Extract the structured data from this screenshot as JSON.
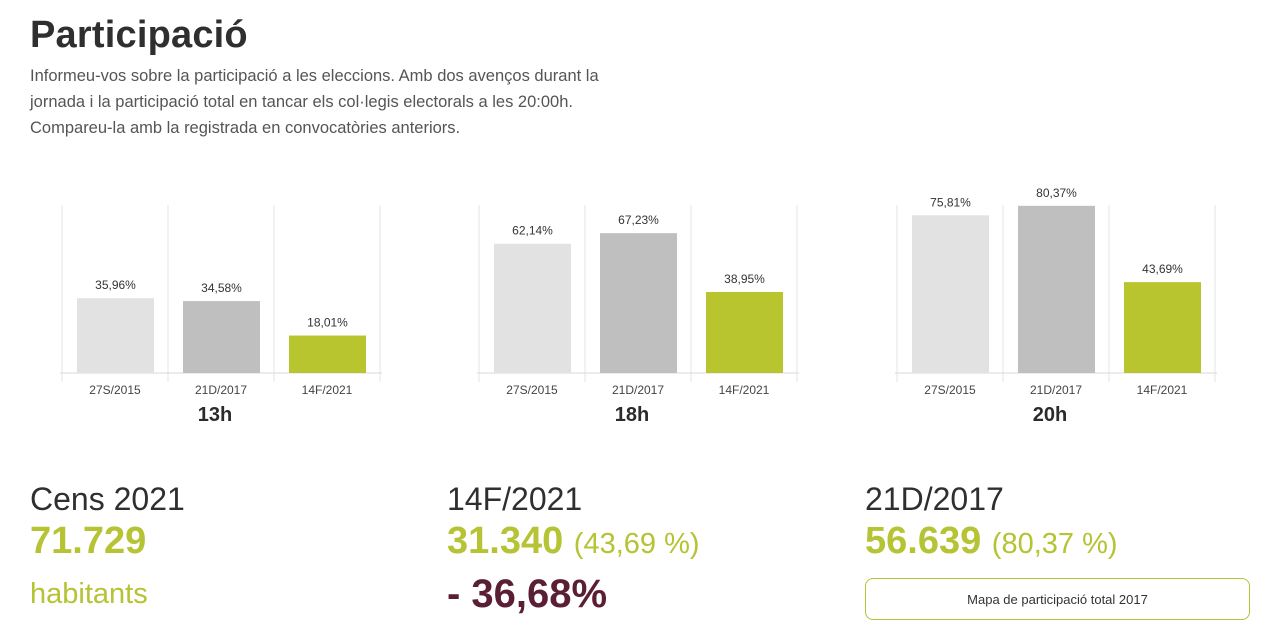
{
  "header": {
    "title": "Participació",
    "intro": "Informeu-vos sobre la participació a les eleccions. Amb dos avenços durant la jornada i la participació total en tancar els col·legis electorals a les 20:00h. Compareu-la amb la registrada en convocatòries anteriors."
  },
  "colors": {
    "bar_2015": "#e2e2e2",
    "bar_2017": "#bfbfbf",
    "bar_2021": "#b9c52e",
    "accent": "#b5c334",
    "decline": "#5a1f34"
  },
  "chart_data": [
    {
      "type": "bar",
      "title": "13h",
      "categories": [
        "27S/2015",
        "21D/2017",
        "14F/2021"
      ],
      "values": [
        35.96,
        34.58,
        18.01
      ],
      "value_labels": [
        "35,96%",
        "34,58%",
        "18,01%"
      ],
      "ylim": [
        0,
        100
      ]
    },
    {
      "type": "bar",
      "title": "18h",
      "categories": [
        "27S/2015",
        "21D/2017",
        "14F/2021"
      ],
      "values": [
        62.14,
        67.23,
        38.95
      ],
      "value_labels": [
        "62,14%",
        "67,23%",
        "38,95%"
      ],
      "ylim": [
        0,
        100
      ]
    },
    {
      "type": "bar",
      "title": "20h",
      "categories": [
        "27S/2015",
        "21D/2017",
        "14F/2021"
      ],
      "values": [
        75.81,
        80.37,
        43.69
      ],
      "value_labels": [
        "75,81%",
        "80,37%",
        "43,69%"
      ],
      "ylim": [
        0,
        100
      ]
    }
  ],
  "stats": {
    "cens": {
      "label": "Cens 2021",
      "value": "71.729",
      "unit": "habitants"
    },
    "current": {
      "label": "14F/2021",
      "value": "31.340",
      "pct": "(43,69 %)",
      "change": "- 36,68%"
    },
    "previous": {
      "label": "21D/2017",
      "value": "56.639",
      "pct": "(80,37 %)"
    }
  },
  "map_button": {
    "label": "Mapa de participació total 2017"
  }
}
